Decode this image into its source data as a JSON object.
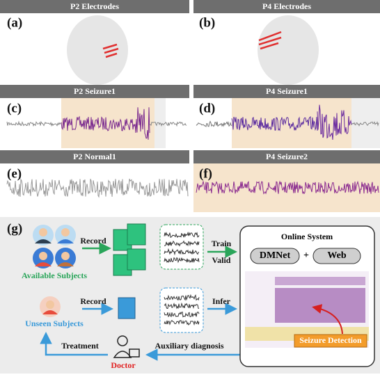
{
  "panels": [
    {
      "title": "P2 Electrodes",
      "tag": "(a)"
    },
    {
      "title": "P4 Electrodes",
      "tag": "(b)"
    },
    {
      "title": "P2 Seizure1",
      "tag": "(c)"
    },
    {
      "title": "P4 Seizure1",
      "tag": "(d)"
    },
    {
      "title": "P2 Normal1",
      "tag": "(e)"
    },
    {
      "title": "P4 Seizure2",
      "tag": "(f)"
    }
  ],
  "workflow": {
    "tag": "(g)",
    "record_top": "Record",
    "record_bottom": "Record",
    "train": "Train",
    "valid": "Valid",
    "infer": "Infer",
    "online_system": "Online System",
    "model": "DMNet",
    "plus": "+",
    "web": "Web",
    "available": "Available Subjects",
    "unseen": "Unseen Subjects",
    "treatment": "Treatment",
    "auxiliary": "Auxiliary diagnosis",
    "doctor": "Doctor",
    "detection": "Seizure Detection"
  }
}
